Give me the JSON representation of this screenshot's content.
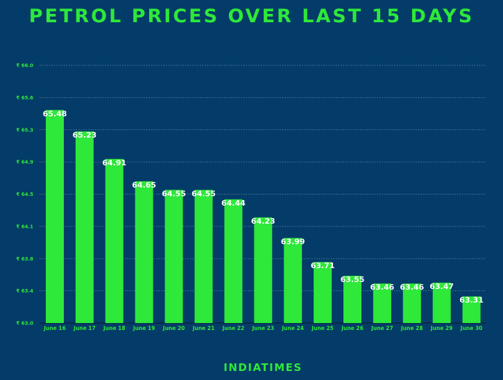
{
  "chart_data": {
    "type": "bar",
    "title": "PETROL PRICES OVER LAST 15 DAYS",
    "categories": [
      "June 16",
      "June 17",
      "June 18",
      "June 19",
      "June 20",
      "June 21",
      "June 22",
      "June 23",
      "June 24",
      "June 25",
      "June 26",
      "June 27",
      "June 28",
      "June 29",
      "June 30"
    ],
    "values": [
      65.48,
      65.23,
      64.91,
      64.65,
      64.55,
      64.55,
      64.44,
      64.23,
      63.99,
      63.71,
      63.55,
      63.46,
      63.46,
      63.47,
      63.31
    ],
    "data_labels": [
      "65.48",
      "65.23",
      "64.91",
      "64.65",
      "64.55",
      "64.55",
      "64.44",
      "64.23",
      "63.99",
      "63.71",
      "63.55",
      "63.46",
      "63.46",
      "63.47",
      "63.31"
    ],
    "y_tick_labels": [
      "₹ 63.0",
      "₹ 63.4",
      "₹ 63.8",
      "₹ 64.1",
      "₹ 64.5",
      "₹ 64.9",
      "₹ 65.3",
      "₹ 65.6",
      "₹ 66.0"
    ],
    "ylim": [
      63.0,
      66.0
    ],
    "grid": "dotted horizontal",
    "xlabel": "",
    "ylabel": "",
    "colors": {
      "bar": "#2ee83a",
      "background": "#033c68",
      "label": "#ffffff"
    }
  },
  "footer": {
    "brand": "INDIATIMES"
  }
}
